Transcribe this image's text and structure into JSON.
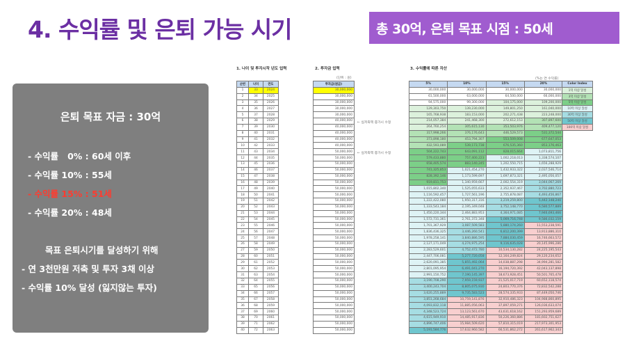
{
  "title": "4. 수익률 및 은퇴 가능 시기",
  "badge": "총 30억, 은퇴 목표 시점  : 50세",
  "panel": {
    "heading": "은퇴 목표 자금 : 30억",
    "lines": [
      "- 수익률   0% : 60세 이후",
      "- 수익률 10% : 55세",
      "- 수익률 15% : 51세",
      "- 수익률 20% : 48세"
    ],
    "subheading": "목표 은퇴시기를 달성하기 위해",
    "tips": [
      "- 연 3천만원 저축 및 투자 3채 이상",
      "- 수익률 10% 달성 (잃지않는 투자)"
    ]
  },
  "sheet": {
    "section1": "1. 나이 및 투자시작 년도 입력",
    "section2": "2. 투자금 입력",
    "section3": "3. 수익률에 따른 자산",
    "unit_note": "(단위 : 원)",
    "rate_note": "(%는 연 수익률)",
    "annotation": "← 실저축액 증가시 수정",
    "table1_headers": [
      "순번",
      "나이",
      "연도"
    ],
    "table2_header": "투자금(원금)",
    "table3_headers": [
      "5%",
      "10%",
      "15%",
      "20%"
    ],
    "color_index": {
      "title": "Color Index",
      "items": [
        {
          "label": "1억 이상 달성",
          "min": 100000000,
          "color": "#dcf1dc"
        },
        {
          "label": "3억 이상 달성",
          "min": 300000000,
          "color": "#b3e2b5"
        },
        {
          "label": "5억 이상 달성",
          "min": 500000000,
          "color": "#7ccf88"
        },
        {
          "label": "10억 이상 달성",
          "min": 1000000000,
          "color": "#def3f5"
        },
        {
          "label": "30억 이상 달성",
          "min": 3000000000,
          "color": "#a6dde3"
        },
        {
          "label": "50억 이상 달성",
          "min": 5000000000,
          "color": "#6fc6ce"
        },
        {
          "label": "100억 이상 달성",
          "min": 10000000000,
          "color": "#f8cfcf"
        }
      ]
    },
    "rows": [
      [
        "1",
        "33",
        "2024",
        "30,000,000",
        "30,000,000",
        "30,000,000",
        "30,000,000",
        "30,000,000"
      ],
      [
        "2",
        "34",
        "2025",
        "30,000,000",
        "61,500,000",
        "63,000,000",
        "64,500,000",
        "66,000,000"
      ],
      [
        "3",
        "35",
        "2026",
        "30,000,000",
        "94,575,000",
        "99,300,000",
        "104,175,000",
        "109,200,000"
      ],
      [
        "4",
        "36",
        "2027",
        "30,000,000",
        "129,303,750",
        "139,230,000",
        "149,801,250",
        "161,040,000"
      ],
      [
        "5",
        "37",
        "2028",
        "30,000,000",
        "165,768,938",
        "183,153,000",
        "202,271,438",
        "223,248,000"
      ],
      [
        "6",
        "38",
        "2029",
        "40,000,000",
        "214,057,384",
        "241,468,300",
        "272,612,153",
        "307,897,600"
      ],
      [
        "7",
        "39",
        "2030",
        "40,000,000",
        "264,760,254",
        "305,615,130",
        "353,503,976",
        "409,477,120"
      ],
      [
        "8",
        "40",
        "2031",
        "40,000,000",
        "317,998,266",
        "376,176,643",
        "446,529,573",
        "531,372,544"
      ],
      [
        "9",
        "41",
        "2032",
        "40,000,000",
        "373,898,180",
        "453,794,307",
        "553,509,008",
        "677,647,053"
      ],
      [
        "10",
        "42",
        "2033",
        "40,000,000",
        "432,593,089",
        "539,173,738",
        "676,535,360",
        "853,176,463"
      ],
      [
        "11",
        "43",
        "2034",
        "50,000,000",
        "504,222,743",
        "643,091,112",
        "828,015,664",
        "1,073,811,756"
      ],
      [
        "12",
        "44",
        "2035",
        "50,000,000",
        "579,433,880",
        "757,400,223",
        "1,002,218,013",
        "1,338,574,107"
      ],
      [
        "13",
        "45",
        "2036",
        "50,000,000",
        "658,405,574",
        "883,140,245",
        "1,202,550,715",
        "1,656,288,929"
      ],
      [
        "14",
        "46",
        "2037",
        "50,000,000",
        "741,325,853",
        "1,021,454,270",
        "1,432,933,322",
        "2,037,546,714"
      ],
      [
        "15",
        "47",
        "2038",
        "50,000,000",
        "828,392,146",
        "1,173,599,697",
        "1,697,873,321",
        "2,495,056,057"
      ],
      [
        "16",
        "48",
        "2039",
        "50,000,000",
        "919,811,753",
        "1,340,959,667",
        "2,002,554,319",
        "3,044,067,269"
      ],
      [
        "17",
        "49",
        "2040",
        "50,000,000",
        "1,015,802,340",
        "1,525,055,633",
        "2,352,937,467",
        "3,702,880,723"
      ],
      [
        "18",
        "50",
        "2041",
        "50,000,000",
        "1,116,592,457",
        "1,727,561,196",
        "2,755,878,087",
        "4,493,456,867"
      ],
      [
        "19",
        "51",
        "2042",
        "50,000,000",
        "1,222,422,080",
        "1,950,317,316",
        "3,219,259,800",
        "5,442,148,240"
      ],
      [
        "20",
        "52",
        "2043",
        "50,000,000",
        "1,333,543,184",
        "2,195,349,048",
        "3,752,148,770",
        "6,580,577,889"
      ],
      [
        "21",
        "53",
        "2044",
        "50,000,000",
        "1,450,220,344",
        "2,464,883,953",
        "4,364,971,085",
        "7,946,693,466"
      ],
      [
        "22",
        "54",
        "2045",
        "50,000,000",
        "1,572,731,361",
        "2,761,372,348",
        "5,069,716,748",
        "9,586,032,159"
      ],
      [
        "23",
        "55",
        "2046",
        "50,000,000",
        "1,701,367,929",
        "3,087,509,583",
        "5,880,174,260",
        "11,553,238,591"
      ],
      [
        "24",
        "56",
        "2047",
        "50,000,000",
        "1,836,436,325",
        "3,446,260,541",
        "6,812,200,399",
        "13,913,886,310"
      ],
      [
        "25",
        "57",
        "2048",
        "50,000,000",
        "1,978,258,141",
        "3,840,886,595",
        "7,884,030,459",
        "16,746,663,572"
      ],
      [
        "26",
        "58",
        "2049",
        "50,000,000",
        "2,127,171,049",
        "4,274,975,254",
        "9,116,635,028",
        "20,145,996,286"
      ],
      [
        "27",
        "59",
        "2050",
        "50,000,000",
        "2,283,529,601",
        "4,752,472,780",
        "10,534,130,282",
        "24,225,195,543"
      ],
      [
        "28",
        "60",
        "2051",
        "50,000,000",
        "2,447,706,081",
        "5,277,720,058",
        "12,164,249,824",
        "29,120,234,652"
      ],
      [
        "29",
        "61",
        "2052",
        "50,000,000",
        "2,620,091,385",
        "5,855,492,064",
        "14,038,887,298",
        "34,994,281,582"
      ],
      [
        "30",
        "62",
        "2053",
        "50,000,000",
        "2,801,095,954",
        "6,491,041,270",
        "16,194,720,392",
        "42,043,137,898"
      ],
      [
        "31",
        "63",
        "2054",
        "50,000,000",
        "2,991,150,752",
        "7,190,145,397",
        "18,673,928,451",
        "50,501,765,478"
      ],
      [
        "32",
        "64",
        "2055",
        "50,000,000",
        "3,190,708,290",
        "7,959,159,937",
        "21,525,017,719",
        "60,652,118,574"
      ],
      [
        "33",
        "65",
        "2056",
        "50,000,000",
        "3,400,243,704",
        "8,805,075,930",
        "24,803,770,376",
        "72,832,542,288"
      ],
      [
        "34",
        "66",
        "2057",
        "50,000,000",
        "3,620,255,889",
        "9,735,583,523",
        "28,574,335,933",
        "87,449,050,746"
      ],
      [
        "35",
        "67",
        "2058",
        "50,000,000",
        "3,851,268,684",
        "10,759,141,876",
        "32,910,486,323",
        "104,988,860,895"
      ],
      [
        "36",
        "68",
        "2059",
        "50,000,000",
        "4,093,832,118",
        "11,885,056,063",
        "37,897,059,271",
        "126,036,633,074"
      ],
      [
        "37",
        "69",
        "2060",
        "50,000,000",
        "4,348,523,724",
        "13,123,561,670",
        "43,631,618,162",
        "151,293,959,689"
      ],
      [
        "38",
        "70",
        "2061",
        "50,000,000",
        "4,615,949,910",
        "14,485,917,836",
        "50,226,360,886",
        "181,602,751,627"
      ],
      [
        "39",
        "71",
        "2062",
        "50,000,000",
        "4,896,747,406",
        "15,984,509,620",
        "57,810,315,019",
        "217,973,301,953"
      ],
      [
        "40",
        "72",
        "2063",
        "50,000,000",
        "5,191,584,776",
        "17,632,960,582",
        "66,531,862,272",
        "261,617,962,343"
      ]
    ]
  }
}
